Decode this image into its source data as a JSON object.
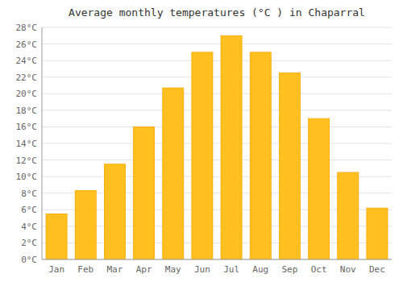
{
  "chart_data": {
    "type": "bar",
    "title": "Average monthly temperatures (°C ) in Chaparral",
    "categories": [
      "Jan",
      "Feb",
      "Mar",
      "Apr",
      "May",
      "Jun",
      "Jul",
      "Aug",
      "Sep",
      "Oct",
      "Nov",
      "Dec"
    ],
    "values": [
      5.5,
      8.3,
      11.5,
      16.0,
      20.7,
      25.0,
      27.0,
      25.0,
      22.5,
      17.0,
      10.5,
      6.2
    ],
    "color": "#FFC020",
    "ylim": [
      0,
      28
    ],
    "yticks": [
      {
        "value": 0,
        "label": "0°C"
      },
      {
        "value": 2,
        "label": "2°C"
      },
      {
        "value": 4,
        "label": "4°C"
      },
      {
        "value": 6,
        "label": "6°C"
      },
      {
        "value": 8,
        "label": "8°C"
      },
      {
        "value": 10,
        "label": "10°C"
      },
      {
        "value": 12,
        "label": "12°C"
      },
      {
        "value": 14,
        "label": "14°C"
      },
      {
        "value": 16,
        "label": "16°C"
      },
      {
        "value": 18,
        "label": "18°C"
      },
      {
        "value": 20,
        "label": "20°C"
      },
      {
        "value": 22,
        "label": "22°C"
      },
      {
        "value": 24,
        "label": "24°C"
      },
      {
        "value": 26,
        "label": "26°C"
      },
      {
        "value": 28,
        "label": "28°C"
      }
    ],
    "grid": true
  }
}
